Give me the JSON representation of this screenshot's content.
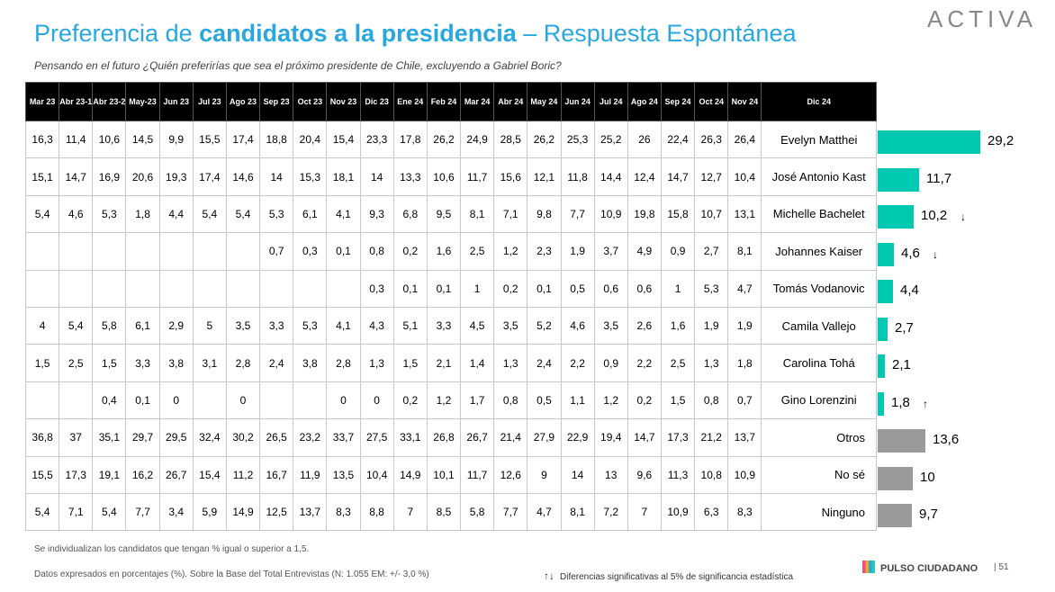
{
  "header": {
    "title_pre": "Preferencia de ",
    "title_bold": "candidatos a la presidencia",
    "title_post": " – Respuesta Espontánea",
    "subtitle": "Pensando en el futuro ¿Quién preferirías que sea el próximo presidente de Chile, excluyendo a Gabriel Boric?",
    "logo": "ACTIVA"
  },
  "table": {
    "columns": [
      "Mar 23",
      "Abr 23-1",
      "Abr 23-2",
      "May-23",
      "Jun 23",
      "Jul 23",
      "Ago 23",
      "Sep 23",
      "Oct 23",
      "Nov 23",
      "Dic 23",
      "Ene  24",
      "Feb 24",
      "Mar 24",
      "Abr 24",
      "May 24",
      "Jun 24",
      "Jul 24",
      "Ago 24",
      "Sep 24",
      "Oct 24",
      "Nov 24",
      "Dic 24"
    ],
    "rows": [
      {
        "name": "Evelyn Matthei",
        "values": [
          "16,3",
          "11,4",
          "10,6",
          "14,5",
          "9,9",
          "15,5",
          "17,4",
          "18,8",
          "20,4",
          "15,4",
          "23,3",
          "17,8",
          "26,2",
          "24,9",
          "28,5",
          "26,2",
          "25,3",
          "25,2",
          "26",
          "22,4",
          "26,3",
          "26,4"
        ],
        "bar": "29,2",
        "arrow": ""
      },
      {
        "name": "José Antonio Kast",
        "values": [
          "15,1",
          "14,7",
          "16,9",
          "20,6",
          "19,3",
          "17,4",
          "14,6",
          "14",
          "15,3",
          "18,1",
          "14",
          "13,3",
          "10,6",
          "11,7",
          "15,6",
          "12,1",
          "11,8",
          "14,4",
          "12,4",
          "14,7",
          "12,7",
          "10,4"
        ],
        "bar": "11,7",
        "arrow": ""
      },
      {
        "name": "Michelle Bachelet",
        "values": [
          "5,4",
          "4,6",
          "5,3",
          "1,8",
          "4,4",
          "5,4",
          "5,4",
          "5,3",
          "6,1",
          "4,1",
          "9,3",
          "6,8",
          "9,5",
          "8,1",
          "7,1",
          "9,8",
          "7,7",
          "10,9",
          "19,8",
          "15,8",
          "10,7",
          "13,1"
        ],
        "bar": "10,2",
        "arrow": "↓"
      },
      {
        "name": "Johannes Kaiser",
        "values": [
          "",
          "",
          "",
          "",
          "",
          "",
          "",
          "0,7",
          "0,3",
          "0,1",
          "0,8",
          "0,2",
          "1,6",
          "2,5",
          "1,2",
          "2,3",
          "1,9",
          "3,7",
          "4,9",
          "0,9",
          "2,7",
          "8,1"
        ],
        "bar": "4,6",
        "arrow": "↓"
      },
      {
        "name": "Tomás Vodanovic",
        "values": [
          "",
          "",
          "",
          "",
          "",
          "",
          "",
          "",
          "",
          "",
          "0,3",
          "0,1",
          "0,1",
          "1",
          "0,2",
          "0,1",
          "0,5",
          "0,6",
          "0,6",
          "1",
          "5,3",
          "4,7"
        ],
        "bar": "4,4",
        "arrow": ""
      },
      {
        "name": "Camila Vallejo",
        "values": [
          "4",
          "5,4",
          "5,8",
          "6,1",
          "2,9",
          "5",
          "3,5",
          "3,3",
          "5,3",
          "4,1",
          "4,3",
          "5,1",
          "3,3",
          "4,5",
          "3,5",
          "5,2",
          "4,6",
          "3,5",
          "2,6",
          "1,6",
          "1,9",
          "1,9"
        ],
        "bar": "2,7",
        "arrow": ""
      },
      {
        "name": "Carolina Tohá",
        "values": [
          "1,5",
          "2,5",
          "1,5",
          "3,3",
          "3,8",
          "3,1",
          "2,8",
          "2,4",
          "3,8",
          "2,8",
          "1,3",
          "1,5",
          "2,1",
          "1,4",
          "1,3",
          "2,4",
          "2,2",
          "0,9",
          "2,2",
          "2,5",
          "1,3",
          "1,8"
        ],
        "bar": "2,1",
        "arrow": ""
      },
      {
        "name": "Gino Lorenzini",
        "values": [
          "",
          "",
          "0,4",
          "0,1",
          "0",
          "",
          "0",
          "",
          "",
          "0",
          "0",
          "0,2",
          "1,2",
          "1,7",
          "0,8",
          "0,5",
          "1,1",
          "1,2",
          "0,2",
          "1,5",
          "0,8",
          "0,7"
        ],
        "bar": "1,8",
        "arrow": "↑"
      },
      {
        "name": "Otros",
        "values": [
          "36,8",
          "37",
          "35,1",
          "29,7",
          "29,5",
          "32,4",
          "30,2",
          "26,5",
          "23,2",
          "33,7",
          "27,5",
          "33,1",
          "26,8",
          "26,7",
          "21,4",
          "27,9",
          "22,9",
          "19,4",
          "14,7",
          "17,3",
          "21,2",
          "13,7"
        ],
        "bar": "13,6",
        "arrow": ""
      },
      {
        "name": "No sé",
        "values": [
          "15,5",
          "17,3",
          "19,1",
          "16,2",
          "26,7",
          "15,4",
          "11,2",
          "16,7",
          "11,9",
          "13,5",
          "10,4",
          "14,9",
          "10,1",
          "11,7",
          "12,6",
          "9",
          "14",
          "13",
          "9,6",
          "11,3",
          "10,8",
          "10,9"
        ],
        "bar": "10",
        "arrow": ""
      },
      {
        "name": "Ninguno",
        "values": [
          "5,4",
          "7,1",
          "5,4",
          "7,7",
          "3,4",
          "5,9",
          "14,9",
          "12,5",
          "13,7",
          "8,3",
          "8,8",
          "7",
          "8,5",
          "5,8",
          "7,7",
          "4,7",
          "8,1",
          "7,2",
          "7",
          "10,9",
          "6,3",
          "8,3"
        ],
        "bar": "9,7",
        "arrow": ""
      }
    ]
  },
  "chart_data": {
    "type": "bar",
    "categories": [
      "Evelyn Matthei",
      "José Antonio Kast",
      "Michelle Bachelet",
      "Johannes Kaiser",
      "Tomás Vodanovic",
      "Camila Vallejo",
      "Carolina Tohá",
      "Gino Lorenzini",
      "Otros",
      "No sé",
      "Ninguno"
    ],
    "values": [
      29.2,
      11.7,
      10.2,
      4.6,
      4.4,
      2.7,
      2.1,
      1.8,
      13.6,
      10,
      9.7
    ],
    "colors": [
      "#00c9b1",
      "#00c9b1",
      "#00c9b1",
      "#00c9b1",
      "#00c9b1",
      "#00c9b1",
      "#00c9b1",
      "#00c9b1",
      "#9a9a9a",
      "#9a9a9a",
      "#9a9a9a"
    ],
    "orientation": "horizontal",
    "xlim": [
      0,
      29.2
    ]
  },
  "footer": {
    "note1": "Se individualizan los candidatos que tengan % igual o superior a 1,5.",
    "note2": "Datos expresados en porcentajes (%). Sobre la Base del Total Entrevistas (N: 1.055  EM: +/- 3,0 %)",
    "legend_symbol": "↑↓",
    "legend_text": "Diferencias  significativas  al 5% de significancia estadística",
    "brand": "PULSO CIUDADANO",
    "page": "|  51"
  }
}
